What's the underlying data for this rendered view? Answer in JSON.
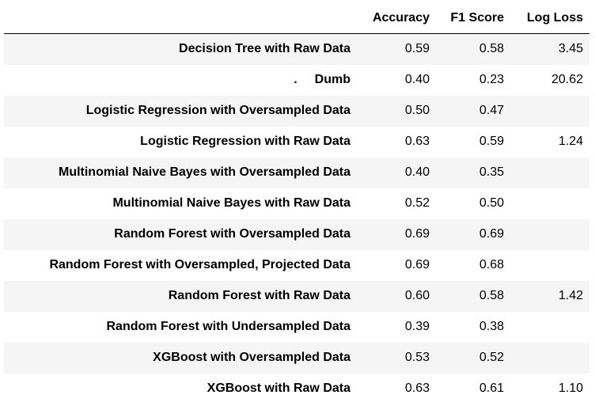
{
  "table": {
    "headers": {
      "name": "",
      "accuracy": "Accuracy",
      "f1": "F1 Score",
      "logloss": "Log Loss"
    },
    "rows": [
      {
        "name": "Decision Tree with Raw Data",
        "accuracy": "0.59",
        "f1": "0.58",
        "logloss": "3.45"
      },
      {
        "prefix": ".",
        "name": "Dumb",
        "accuracy": "0.40",
        "f1": "0.23",
        "logloss": "20.62"
      },
      {
        "name": "Logistic Regression with Oversampled Data",
        "accuracy": "0.50",
        "f1": "0.47",
        "logloss": ""
      },
      {
        "name": "Logistic Regression with Raw Data",
        "accuracy": "0.63",
        "f1": "0.59",
        "logloss": "1.24"
      },
      {
        "name": "Multinomial Naive Bayes with Oversampled Data",
        "accuracy": "0.40",
        "f1": "0.35",
        "logloss": ""
      },
      {
        "name": "Multinomial Naive Bayes with Raw Data",
        "accuracy": "0.52",
        "f1": "0.50",
        "logloss": ""
      },
      {
        "name": "Random Forest with Oversampled Data",
        "accuracy": "0.69",
        "f1": "0.69",
        "logloss": ""
      },
      {
        "name": "Random Forest with Oversampled, Projected Data",
        "accuracy": "0.69",
        "f1": "0.68",
        "logloss": ""
      },
      {
        "name": "Random Forest with Raw Data",
        "accuracy": "0.60",
        "f1": "0.58",
        "logloss": "1.42"
      },
      {
        "name": "Random Forest with Undersampled Data",
        "accuracy": "0.39",
        "f1": "0.38",
        "logloss": ""
      },
      {
        "name": "XGBoost with Oversampled Data",
        "accuracy": "0.53",
        "f1": "0.52",
        "logloss": ""
      },
      {
        "name": "XGBoost with Raw Data",
        "accuracy": "0.63",
        "f1": "0.61",
        "logloss": "1.10"
      }
    ]
  }
}
